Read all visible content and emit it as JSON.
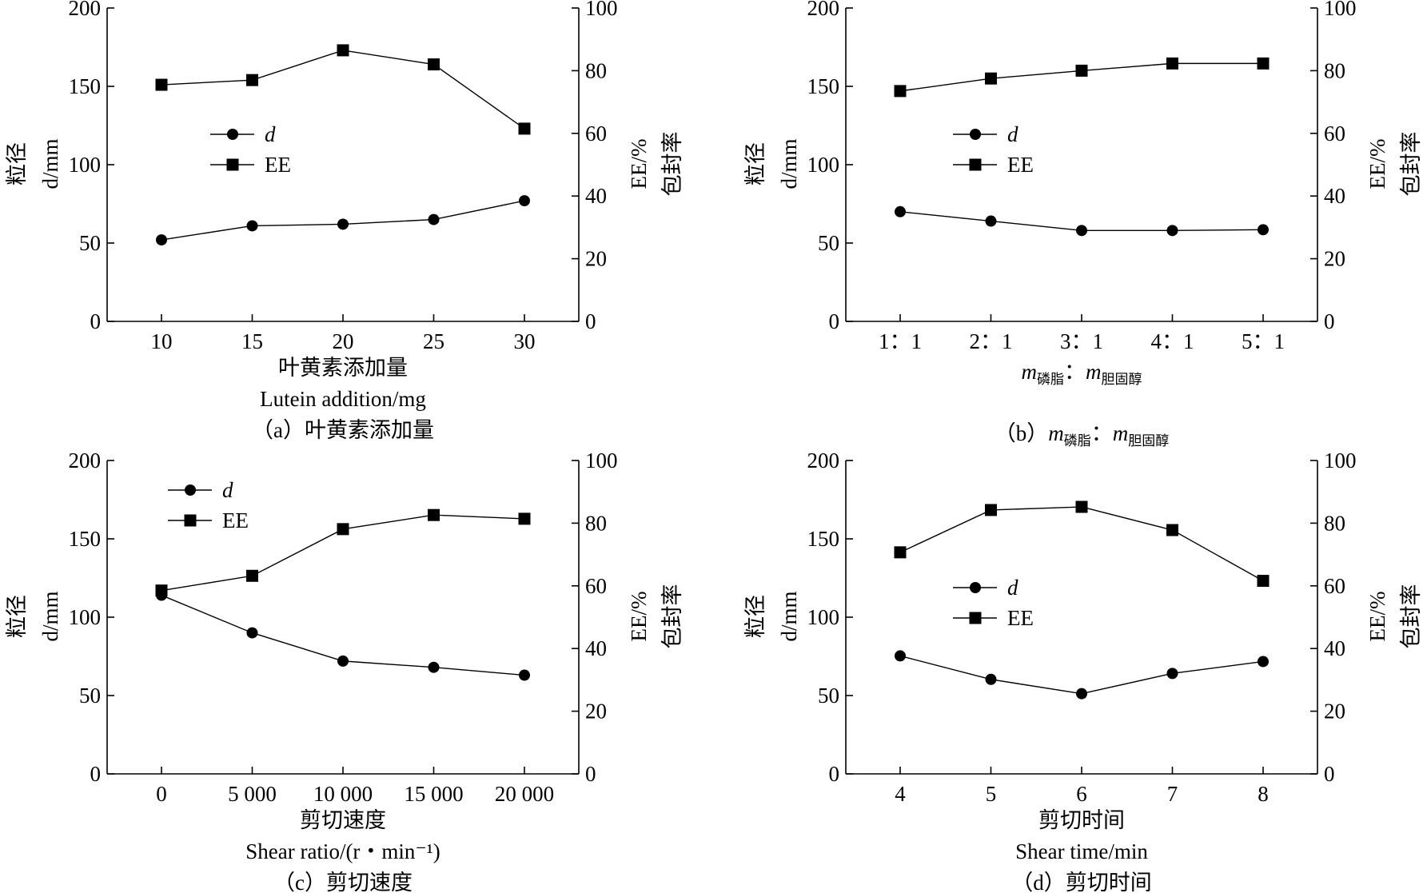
{
  "chart_data": [
    {
      "id": "a",
      "type": "line",
      "categories": [
        "10",
        "15",
        "20",
        "25",
        "30"
      ],
      "series": [
        {
          "name": "d",
          "axis": "left",
          "marker": "circle",
          "values": [
            52,
            61,
            62,
            65,
            77
          ]
        },
        {
          "name": "EE",
          "axis": "right",
          "marker": "square",
          "values": [
            75.5,
            77,
            86.5,
            82,
            61.5
          ]
        }
      ],
      "ylabel_left": [
        "粒径",
        "d/mm"
      ],
      "ylabel_right": [
        "EE/%",
        "包封率"
      ],
      "ylim_left": [
        0,
        200
      ],
      "yticks_left": [
        "0",
        "50",
        "100",
        "150",
        "200"
      ],
      "ylim_right": [
        0,
        100
      ],
      "yticks_right": [
        "0",
        "20",
        "40",
        "60",
        "80",
        "100"
      ],
      "xlabel_cn": "叶黄素添加量",
      "xlabel_en": "Lutein addition/mg",
      "caption_prefix": "（a）",
      "caption_text": "叶黄素添加量",
      "legend_placement": "center-left"
    },
    {
      "id": "b",
      "type": "line",
      "categories": [
        "1：1",
        "2：1",
        "3：1",
        "4：1",
        "5：1"
      ],
      "series": [
        {
          "name": "d",
          "axis": "left",
          "marker": "circle",
          "values": [
            70,
            64,
            58,
            58,
            58.5
          ]
        },
        {
          "name": "EE",
          "axis": "right",
          "marker": "square",
          "values": [
            73.5,
            77.5,
            80,
            82.3,
            82.3
          ]
        }
      ],
      "ylabel_left": [
        "粒径",
        "d/mm"
      ],
      "ylabel_right": [
        "EE/%",
        "包封率"
      ],
      "ylim_left": [
        0,
        200
      ],
      "yticks_left": [
        "0",
        "50",
        "100",
        "150",
        "200"
      ],
      "ylim_right": [
        0,
        100
      ],
      "yticks_right": [
        "0",
        "20",
        "40",
        "60",
        "80",
        "100"
      ],
      "xlabel_parts": {
        "m1": "m",
        "sub1": "磷脂",
        "sep": "：",
        "m2": "m",
        "sub2": "胆固醇"
      },
      "caption_prefix": "（b）",
      "legend_placement": "center-left"
    },
    {
      "id": "c",
      "type": "line",
      "categories": [
        "0",
        "5 000",
        "10 000",
        "15 000",
        "20 000"
      ],
      "series": [
        {
          "name": "d",
          "axis": "left",
          "marker": "circle",
          "values": [
            114,
            90,
            72,
            68,
            63
          ]
        },
        {
          "name": "EE",
          "axis": "right",
          "marker": "square",
          "values": [
            58.5,
            63.2,
            78.1,
            82.6,
            81.4
          ]
        }
      ],
      "ylabel_left": [
        "粒径",
        "d/mm"
      ],
      "ylabel_right": [
        "EE/%",
        "包封率"
      ],
      "ylim_left": [
        0,
        200
      ],
      "yticks_left": [
        "0",
        "50",
        "100",
        "150",
        "200"
      ],
      "ylim_right": [
        0,
        100
      ],
      "yticks_right": [
        "0",
        "20",
        "40",
        "60",
        "80",
        "100"
      ],
      "xlabel_cn": "剪切速度",
      "xlabel_en": "Shear ratio/(r・min⁻¹)",
      "caption_prefix": "（c）",
      "caption_text": "剪切速度",
      "legend_placement": "top-left"
    },
    {
      "id": "d",
      "type": "line",
      "categories": [
        "4",
        "5",
        "6",
        "7",
        "8"
      ],
      "series": [
        {
          "name": "d",
          "axis": "left",
          "marker": "circle",
          "values": [
            75.3,
            60.3,
            51.2,
            64.1,
            71.7
          ]
        },
        {
          "name": "EE",
          "axis": "right",
          "marker": "square",
          "values": [
            70.7,
            84.2,
            85.2,
            77.8,
            61.6
          ]
        }
      ],
      "ylabel_left": [
        "粒径",
        "d/mm"
      ],
      "ylabel_right": [
        "EE/%",
        "包封率"
      ],
      "ylim_left": [
        0,
        200
      ],
      "yticks_left": [
        "0",
        "50",
        "100",
        "150",
        "200"
      ],
      "ylim_right": [
        0,
        100
      ],
      "yticks_right": [
        "0",
        "20",
        "40",
        "60",
        "80",
        "100"
      ],
      "xlabel_cn": "剪切时间",
      "xlabel_en": "Shear time/min",
      "caption_prefix": "（d）",
      "caption_text": "剪切时间",
      "legend_placement": "center-left"
    }
  ]
}
